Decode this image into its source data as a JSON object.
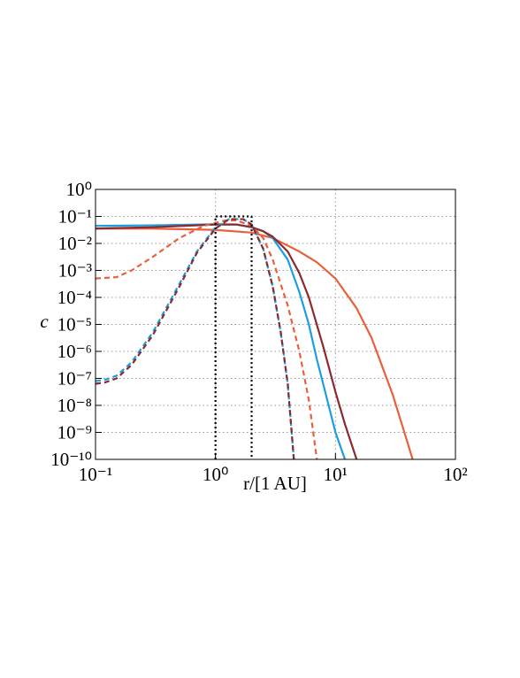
{
  "chart_data": {
    "type": "line",
    "xscale": "log",
    "yscale": "log",
    "xlabel": "r/[1 AU]",
    "ylabel": "c",
    "xlim": [
      0.1,
      100
    ],
    "ylim": [
      1e-10,
      1
    ],
    "xticks": [
      {
        "value": 0.1,
        "label": "10⁻¹"
      },
      {
        "value": 1,
        "label": "10⁰"
      },
      {
        "value": 10,
        "label": "10¹"
      },
      {
        "value": 100,
        "label": "10²"
      }
    ],
    "yticks": [
      {
        "value": 1,
        "label": "10⁰"
      },
      {
        "value": 0.1,
        "label": "10⁻¹"
      },
      {
        "value": 0.01,
        "label": "10⁻²"
      },
      {
        "value": 0.001,
        "label": "10⁻³"
      },
      {
        "value": 0.0001,
        "label": "10⁻⁴"
      },
      {
        "value": 1e-05,
        "label": "10⁻⁵"
      },
      {
        "value": 1e-06,
        "label": "10⁻⁶"
      },
      {
        "value": 1e-07,
        "label": "10⁻⁷"
      },
      {
        "value": 1e-08,
        "label": "10⁻⁸"
      },
      {
        "value": 1e-09,
        "label": "10⁻⁹"
      },
      {
        "value": 1e-10,
        "label": "10⁻¹⁰"
      }
    ],
    "grid": true,
    "series": [
      {
        "color": "#e8603c",
        "dash": "solid",
        "x": [
          0.1,
          0.3,
          1,
          2,
          3,
          5,
          7,
          10,
          15,
          20,
          30,
          44
        ],
        "values": [
          0.0355,
          0.0355,
          0.0316,
          0.0251,
          0.0158,
          0.00501,
          0.002,
          0.000501,
          3.98e-05,
          3.16e-06,
          2.51e-08,
          1e-10
        ]
      },
      {
        "color": "#1a9ee0",
        "dash": "solid",
        "x": [
          0.1,
          0.3,
          1,
          1.5,
          2,
          2.5,
          3,
          4,
          5,
          6,
          7,
          8,
          10,
          12
        ],
        "values": [
          0.0447,
          0.0468,
          0.0513,
          0.0501,
          0.0398,
          0.0282,
          0.0158,
          0.00251,
          0.000158,
          1e-05,
          5.01e-07,
          5.01e-08,
          1e-09,
          1e-10
        ]
      },
      {
        "color": "#8b2a2e",
        "dash": "solid",
        "x": [
          0.1,
          0.3,
          1,
          1.5,
          2,
          2.5,
          3,
          4,
          5,
          6,
          8,
          10,
          12,
          15
        ],
        "values": [
          0.0355,
          0.0398,
          0.0501,
          0.0501,
          0.0398,
          0.0282,
          0.0178,
          0.00501,
          0.000794,
          0.0001,
          1.26e-06,
          3.16e-08,
          2e-09,
          1e-10
        ]
      },
      {
        "color": "#e8603c",
        "dash": "dashed",
        "x": [
          0.1,
          0.15,
          0.2,
          0.3,
          0.5,
          0.8,
          1.2,
          1.5,
          2,
          2.5,
          3,
          4,
          5,
          6,
          7
        ],
        "values": [
          0.000501,
          0.000562,
          0.001,
          0.00316,
          0.0158,
          0.0447,
          0.0708,
          0.0708,
          0.0447,
          0.0158,
          0.00251,
          5.01e-05,
          1e-06,
          1.58e-08,
          1e-10
        ]
      },
      {
        "color": "#1a9ee0",
        "dash": "dashed",
        "x": [
          0.1,
          0.12,
          0.15,
          0.2,
          0.3,
          0.5,
          0.7,
          1,
          1.3,
          1.7,
          2,
          2.5,
          3,
          3.5,
          4,
          4.5
        ],
        "values": [
          7.94e-08,
          8.91e-08,
          1.26e-07,
          3.98e-07,
          5.01e-06,
          0.000316,
          0.00501,
          0.0398,
          0.0794,
          0.0794,
          0.0501,
          0.00631,
          0.000251,
          5.01e-06,
          6.31e-08,
          1e-10
        ]
      },
      {
        "color": "#8b2a2e",
        "dash": "dashed",
        "x": [
          0.1,
          0.12,
          0.15,
          0.2,
          0.3,
          0.5,
          0.7,
          1,
          1.3,
          1.7,
          2,
          2.5,
          3,
          3.5,
          4,
          4.5
        ],
        "values": [
          6.31e-08,
          7.08e-08,
          1e-07,
          3.16e-07,
          3.98e-06,
          0.000251,
          0.00447,
          0.0355,
          0.0794,
          0.0794,
          0.0501,
          0.00631,
          0.000251,
          5.01e-06,
          6.31e-08,
          1e-10
        ]
      },
      {
        "color": "#000000",
        "dash": "dotted",
        "x": [
          1,
          1,
          2,
          2
        ],
        "values": [
          1e-10,
          0.1,
          0.1,
          1e-10
        ]
      }
    ]
  }
}
